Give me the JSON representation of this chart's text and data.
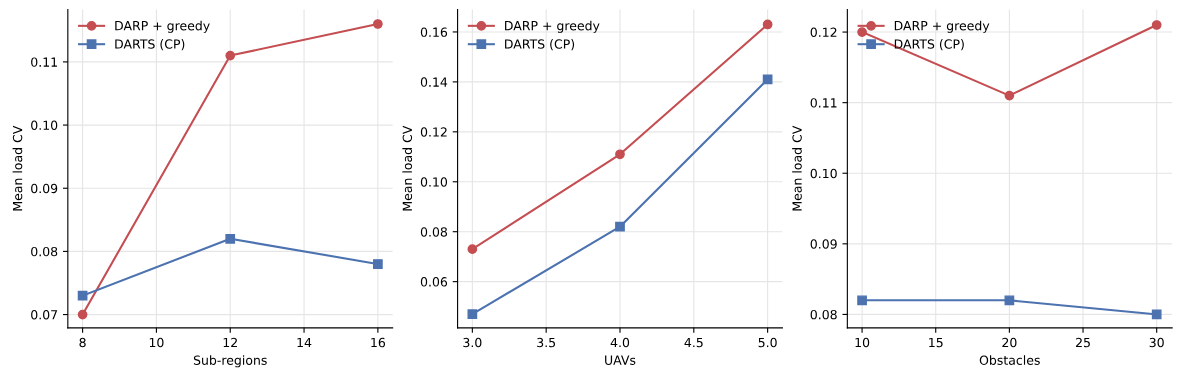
{
  "chart_data": [
    {
      "type": "line",
      "xlabel": "Sub-regions",
      "ylabel": "Mean load CV",
      "x": [
        8,
        12,
        16
      ],
      "xlim": [
        7.6,
        16.4
      ],
      "xticks": [
        8,
        10,
        12,
        14,
        16
      ],
      "ylim": [
        0.0679,
        0.1183
      ],
      "yticks": [
        {
          "value": 0.07,
          "label": "0.07"
        },
        {
          "value": 0.08,
          "label": "0.08"
        },
        {
          "value": 0.09,
          "label": "0.09"
        },
        {
          "value": 0.1,
          "label": "0.10"
        },
        {
          "value": 0.11,
          "label": "0.11"
        }
      ],
      "grid": true,
      "legend": "top left",
      "series": [
        {
          "name": "DARP + greedy",
          "color": "#c44e52",
          "marker": "circle",
          "values": [
            0.07,
            0.111,
            0.116
          ]
        },
        {
          "name": "DARTS (CP)",
          "color": "#4c72b0",
          "marker": "square",
          "values": [
            0.073,
            0.082,
            0.078
          ]
        }
      ]
    },
    {
      "type": "line",
      "xlabel": "UAVs",
      "ylabel": "Mean load CV",
      "x": [
        3,
        4,
        5
      ],
      "xlim": [
        2.9,
        5.1
      ],
      "xticks": [
        {
          "value": 3,
          "label": "3.0"
        },
        3.5,
        {
          "value": 4,
          "label": "4.0"
        },
        4.5,
        {
          "value": 5,
          "label": "5.0"
        }
      ],
      "ylim": [
        0.0415,
        0.169
      ],
      "yticks": [
        {
          "value": 0.06,
          "label": "0.06"
        },
        {
          "value": 0.08,
          "label": "0.08"
        },
        {
          "value": 0.1,
          "label": "0.10"
        },
        {
          "value": 0.12,
          "label": "0.12"
        },
        {
          "value": 0.14,
          "label": "0.14"
        },
        {
          "value": 0.16,
          "label": "0.16"
        }
      ],
      "grid": true,
      "legend": "top left",
      "series": [
        {
          "name": "DARP + greedy",
          "color": "#c44e52",
          "marker": "circle",
          "values": [
            0.073,
            0.111,
            0.163
          ]
        },
        {
          "name": "DARTS (CP)",
          "color": "#4c72b0",
          "marker": "square",
          "values": [
            0.047,
            0.082,
            0.141
          ]
        }
      ]
    },
    {
      "type": "line",
      "xlabel": "Obstacles",
      "ylabel": "Mean load CV",
      "x": [
        10,
        20,
        30
      ],
      "xlim": [
        9,
        31.05
      ],
      "xticks": [
        10,
        15,
        20,
        25,
        30
      ],
      "ylim": [
        0.0781,
        0.1232
      ],
      "yticks": [
        {
          "value": 0.08,
          "label": "0.08"
        },
        {
          "value": 0.09,
          "label": "0.09"
        },
        {
          "value": 0.1,
          "label": "0.10"
        },
        {
          "value": 0.11,
          "label": "0.11"
        },
        {
          "value": 0.12,
          "label": "0.12"
        }
      ],
      "grid": true,
      "legend": "top left",
      "series": [
        {
          "name": "DARP + greedy",
          "color": "#c44e52",
          "marker": "circle",
          "values": [
            0.12,
            0.111,
            0.121
          ]
        },
        {
          "name": "DARTS (CP)",
          "color": "#4c72b0",
          "marker": "square",
          "values": [
            0.082,
            0.082,
            0.08
          ]
        }
      ]
    }
  ]
}
